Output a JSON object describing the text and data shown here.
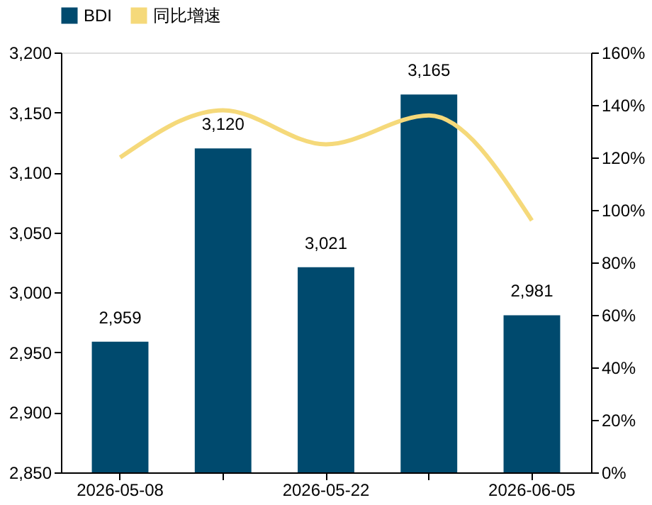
{
  "chart_data": {
    "type": "bar",
    "categories": [
      "2026-05-08",
      null,
      "2026-05-22",
      null,
      "2026-06-05"
    ],
    "series": [
      {
        "name": "BDI",
        "color": "#004a6e",
        "values": [
          2959,
          3120,
          3021,
          3165,
          2981
        ],
        "value_labels": [
          "2,959",
          "3,120",
          "3,021",
          "3,165",
          "2,981"
        ]
      },
      {
        "name": "同比增速",
        "type": "line",
        "axis": "y2",
        "color": "#f5d97a",
        "values": [
          120,
          138,
          125,
          136,
          96
        ]
      }
    ],
    "ylim": [
      2850,
      3200
    ],
    "yticks": [
      {
        "value": 2850,
        "label": "2,850"
      },
      {
        "value": 2900,
        "label": "2,900"
      },
      {
        "value": 2950,
        "label": "2,950"
      },
      {
        "value": 3000,
        "label": "3,000"
      },
      {
        "value": 3050,
        "label": "3,050"
      },
      {
        "value": 3100,
        "label": "3,100"
      },
      {
        "value": 3150,
        "label": "3,150"
      },
      {
        "value": 3200,
        "label": "3,200"
      }
    ],
    "y2lim": [
      0,
      160
    ],
    "y2ticks": [
      {
        "value": 0,
        "label": "0%"
      },
      {
        "value": 20,
        "label": "20%"
      },
      {
        "value": 40,
        "label": "40%"
      },
      {
        "value": 60,
        "label": "60%"
      },
      {
        "value": 80,
        "label": "80%"
      },
      {
        "value": 100,
        "label": "100%"
      },
      {
        "value": 120,
        "label": "120%"
      },
      {
        "value": 140,
        "label": "140%"
      },
      {
        "value": 160,
        "label": "160%"
      }
    ],
    "grid": false,
    "legend": "top"
  }
}
